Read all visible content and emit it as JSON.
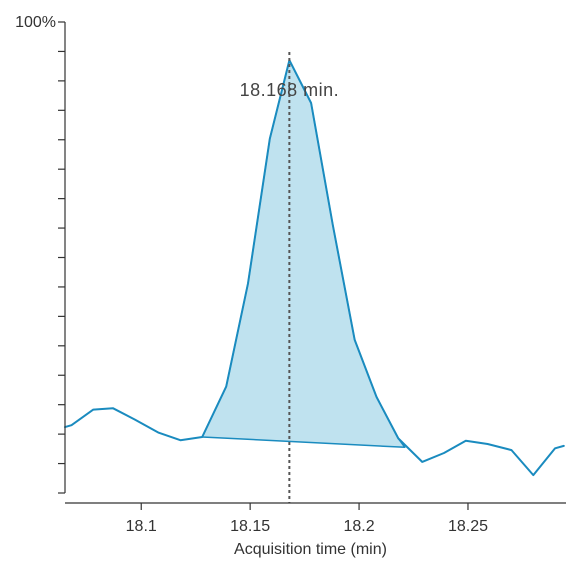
{
  "chart_data": {
    "type": "line",
    "title": "",
    "xlabel": "Acquisition time (min)",
    "ylabel": "",
    "y_top_label": "100%",
    "xlim": [
      18.065,
      18.295
    ],
    "ylim": [
      0,
      100
    ],
    "x_ticks": [
      18.1,
      18.15,
      18.2,
      18.25
    ],
    "x_tick_labels": [
      "18.1",
      "18.15",
      "18.2",
      "18.25"
    ],
    "y_minor_tick_count": 16,
    "grid": false,
    "legend": "none",
    "colors": {
      "line": "#1a8bbf",
      "fill": "#bfe2ef",
      "marker": "#555555",
      "axis": "#333333"
    },
    "series": [
      {
        "x": [
          18.065,
          18.068,
          18.078,
          18.087,
          18.097,
          18.108,
          18.118,
          18.128,
          18.139,
          18.149,
          18.159,
          18.168,
          18.178,
          18.188,
          18.198,
          18.208,
          18.218,
          18.229,
          18.239,
          18.249,
          18.259,
          18.27,
          18.28,
          18.29,
          18.294
        ],
        "y": [
          14.0,
          14.4,
          17.7,
          18.0,
          15.6,
          12.8,
          11.2,
          11.9,
          22.6,
          44.5,
          75.2,
          91.9,
          82.8,
          56.8,
          32.5,
          20.4,
          11.6,
          6.6,
          8.5,
          11.1,
          10.4,
          9.1,
          3.8,
          9.5,
          10.0
        ]
      }
    ],
    "peak": {
      "label": "18.168 min.",
      "x": 18.168,
      "start_x": 18.128,
      "end_x": 18.221,
      "baseline_start_y": 11.9,
      "baseline_end_y": 9.7
    }
  }
}
